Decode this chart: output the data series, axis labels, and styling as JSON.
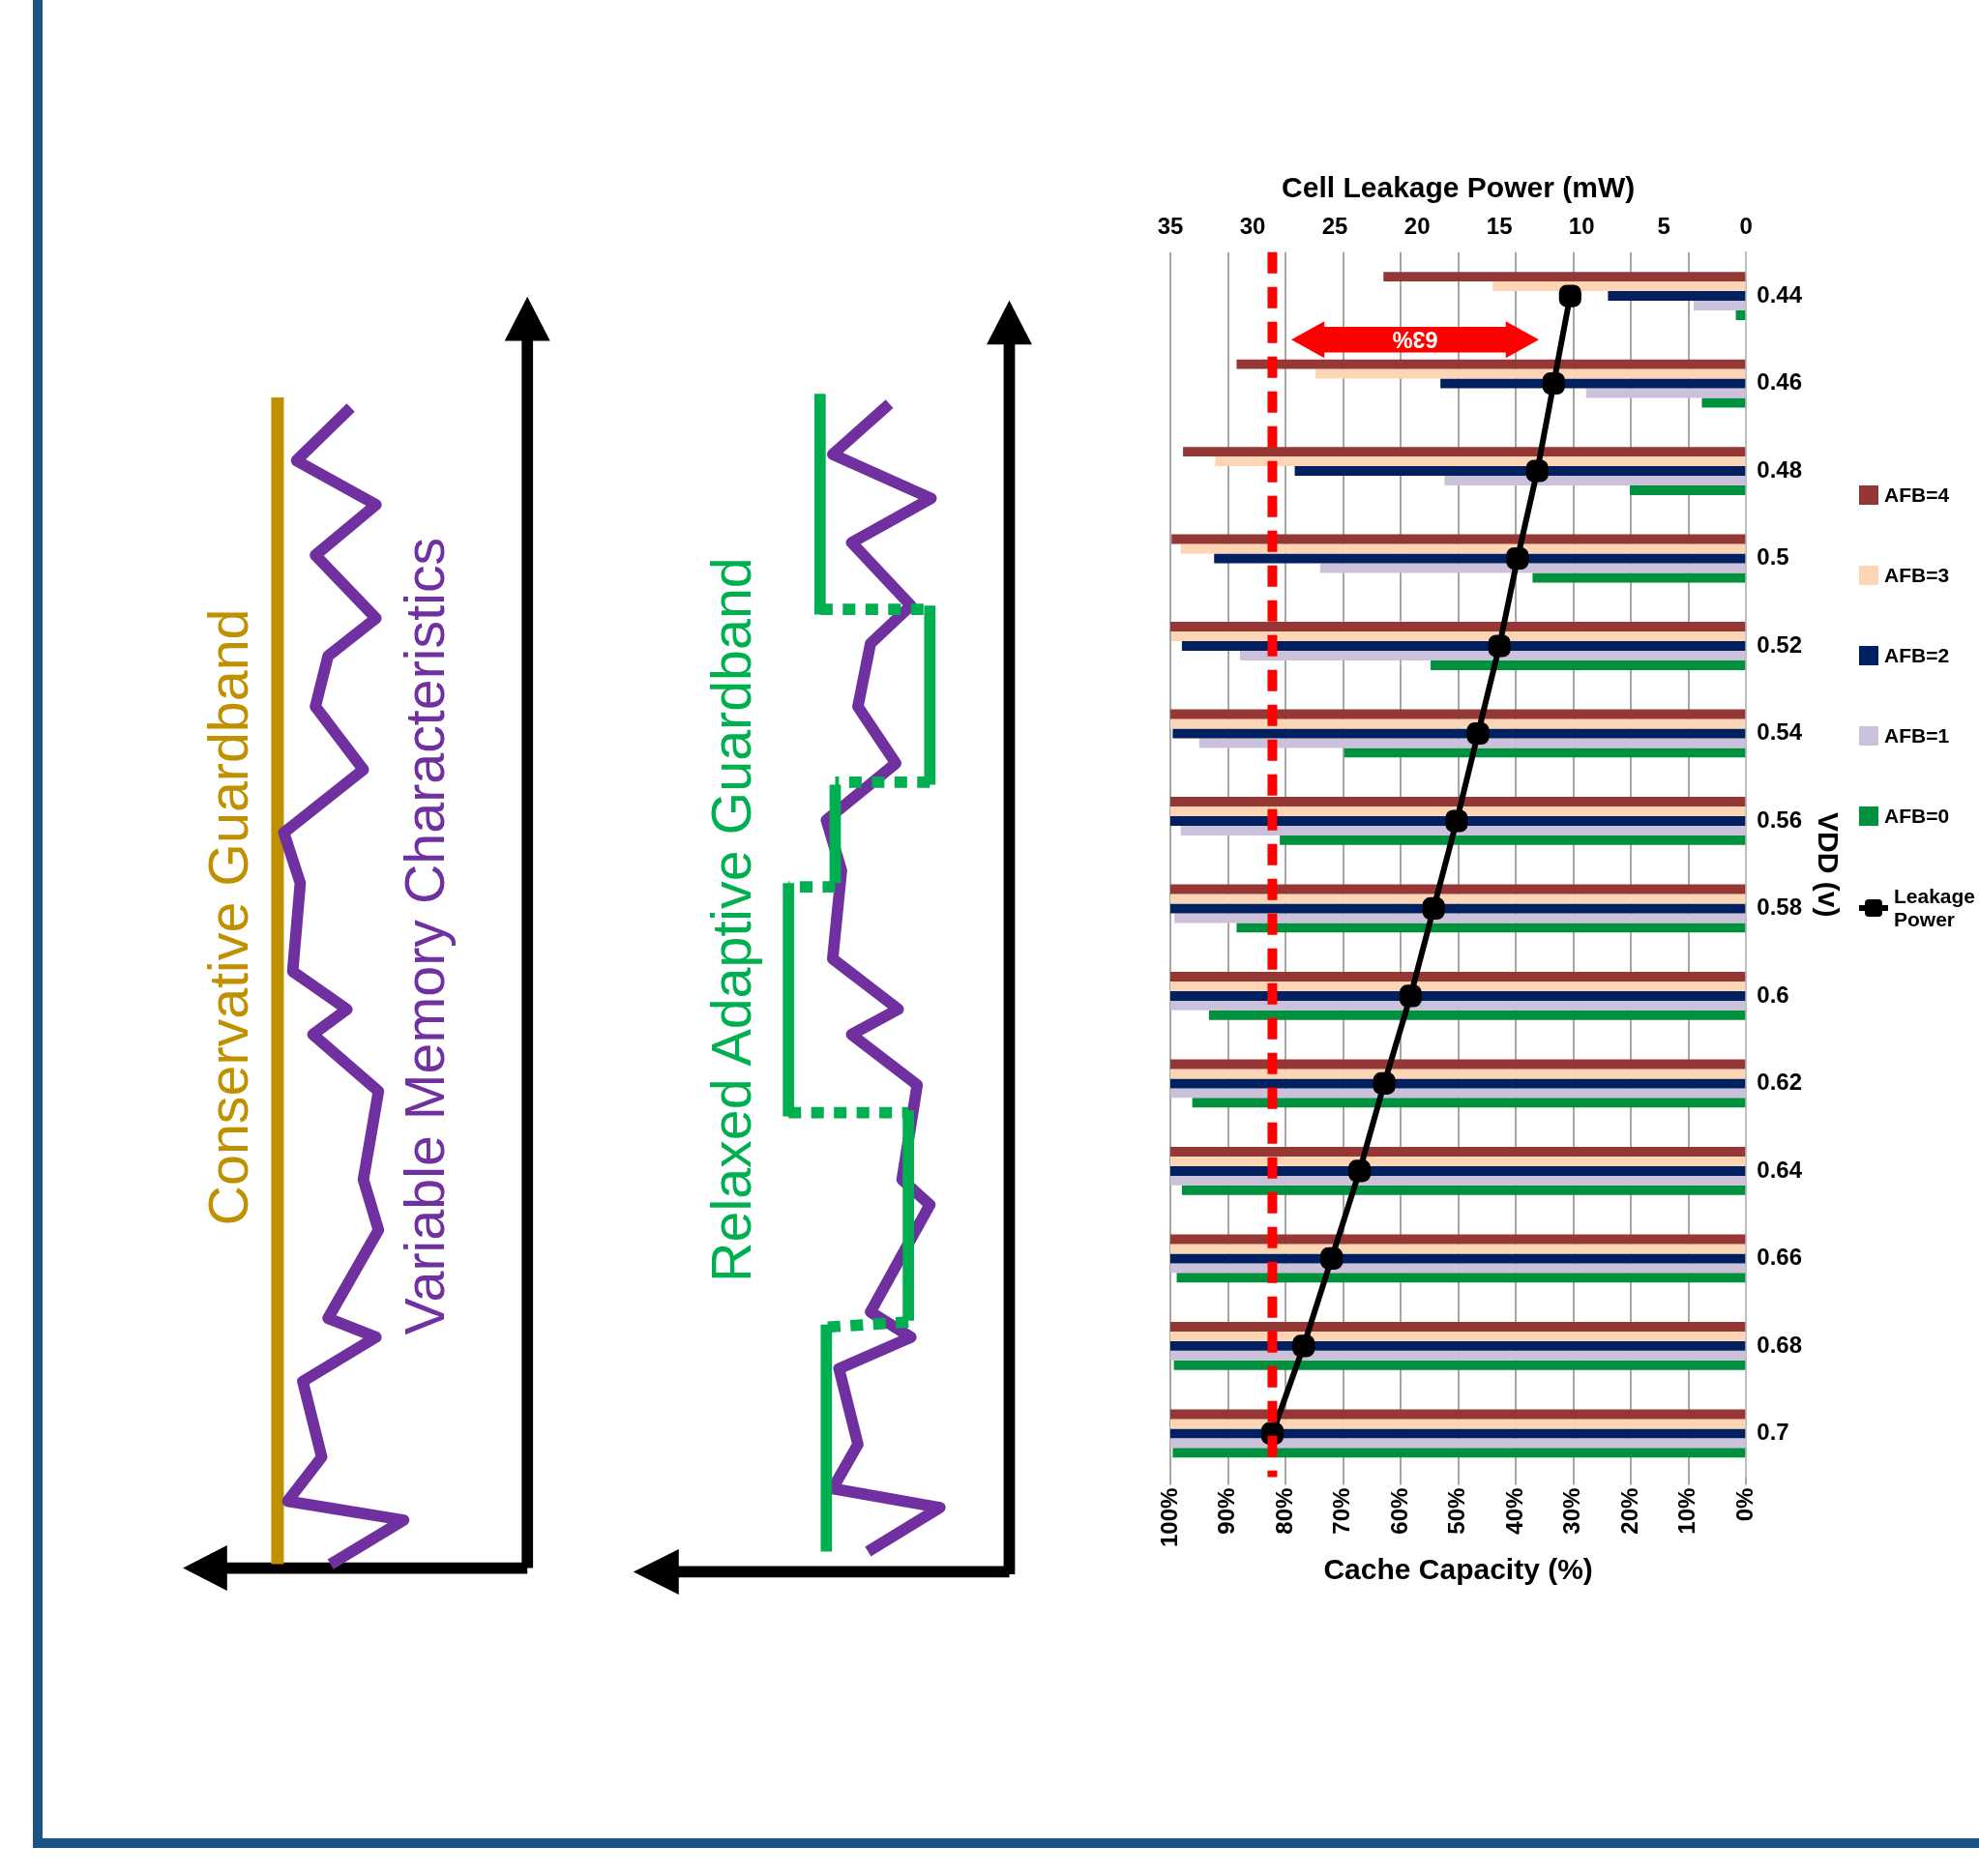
{
  "chart_data": {
    "type": "bar",
    "orientation": "horizontal",
    "xlabel": "Cache Capacity (%)",
    "ylabel": "VDD (v)",
    "x2label": "Cell Leakage Power (mW)",
    "categories": [
      "0.44",
      "0.46",
      "0.48",
      "0.5",
      "0.52",
      "0.54",
      "0.56",
      "0.58",
      "0.6",
      "0.62",
      "0.64",
      "0.66",
      "0.68",
      "0.7"
    ],
    "series": [
      {
        "name": "AFB=4",
        "color": "#953735",
        "values": [
          63.0,
          88.5,
          97.8,
          99.8,
          100,
          100,
          100,
          100,
          100,
          100,
          100,
          100,
          100,
          100
        ]
      },
      {
        "name": "AFB=3",
        "color": "#fcd5b5",
        "values": [
          44,
          74.8,
          92.2,
          98.2,
          99.8,
          100,
          100,
          100,
          100,
          100,
          100,
          100,
          100,
          100
        ]
      },
      {
        "name": "AFB=2",
        "color": "#002060",
        "values": [
          24.0,
          53.1,
          78.4,
          92.4,
          98.0,
          99.6,
          100,
          100,
          100,
          100,
          100,
          100,
          100,
          100
        ]
      },
      {
        "name": "AFB=1",
        "color": "#ccc1da",
        "values": [
          9.1,
          27.8,
          52.4,
          74.0,
          87.9,
          95.0,
          98.2,
          99.3,
          100,
          100,
          100,
          100,
          100,
          100
        ]
      },
      {
        "name": "AFB=0",
        "color": "#00913f",
        "values": [
          1.8,
          7.7,
          20.2,
          37.1,
          54.8,
          69.8,
          81.0,
          88.5,
          93.3,
          96.2,
          98.0,
          98.9,
          99.4,
          99.6
        ]
      },
      {
        "name": "Leakage Power",
        "type": "line",
        "axis": "x2",
        "marker": "square",
        "color": "#000000",
        "values": [
          10.7,
          11.7,
          12.7,
          13.9,
          15.0,
          16.3,
          17.6,
          19.0,
          20.4,
          22.0,
          23.5,
          25.2,
          26.9,
          28.8
        ]
      }
    ],
    "xlim": [
      100,
      0
    ],
    "xticks": [
      {
        "value": 0,
        "label": "0%"
      },
      {
        "value": 10,
        "label": "10%"
      },
      {
        "value": 20,
        "label": "20%"
      },
      {
        "value": 30,
        "label": "30%"
      },
      {
        "value": 40,
        "label": "40%"
      },
      {
        "value": 50,
        "label": "50%"
      },
      {
        "value": 60,
        "label": "60%"
      },
      {
        "value": 70,
        "label": "70%"
      },
      {
        "value": 80,
        "label": "80%"
      },
      {
        "value": 90,
        "label": "90%"
      },
      {
        "value": 100,
        "label": "100%"
      }
    ],
    "x2lim": [
      35,
      0
    ],
    "x2ticks": [
      0,
      5,
      10,
      15,
      20,
      25,
      30,
      35
    ],
    "grid": "x",
    "legend": "right",
    "ref_lines": [
      {
        "axis": "x2",
        "value": 28.8,
        "color": "#ff0000",
        "line_style": "dashed"
      }
    ],
    "annotations": [
      "Conservative Guardband",
      "Variable Memory Characteristics",
      "Relaxed Adaptive Guardband",
      "63%"
    ]
  }
}
